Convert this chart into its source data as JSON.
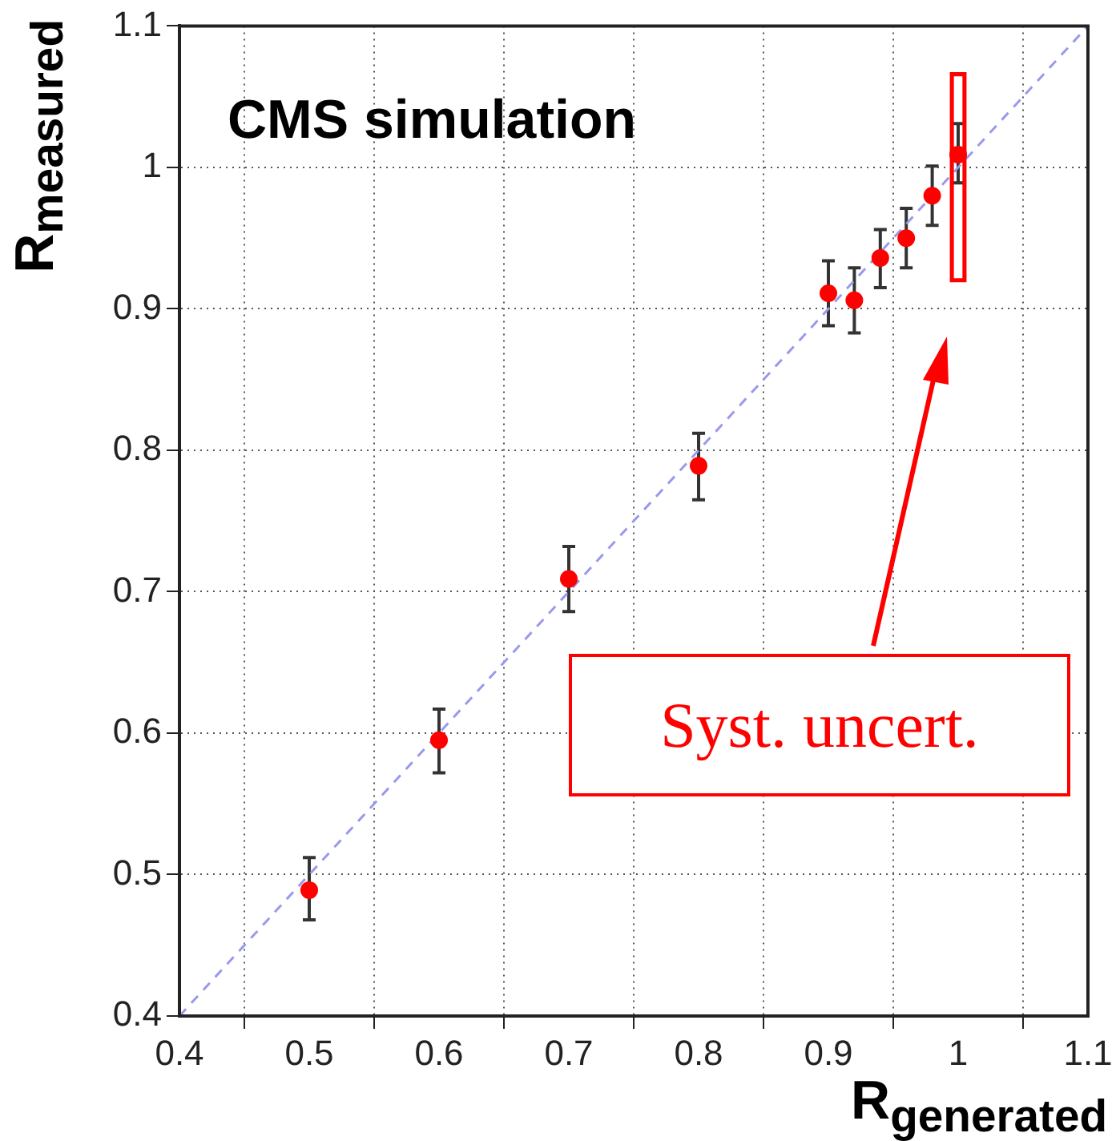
{
  "chart_data": {
    "type": "scatter",
    "title": "CMS simulation",
    "xlabel": "R$_{generated}$",
    "ylabel": "R$_{measured}$",
    "xlim": [
      0.4,
      1.1
    ],
    "xticks": [
      0.4,
      0.5,
      0.6,
      0.7,
      0.8,
      0.9,
      1,
      1.1
    ],
    "ylim": [
      0.4,
      1.1
    ],
    "yticks": [
      0.4,
      0.5,
      0.6,
      0.7,
      0.8,
      0.9,
      1,
      1.1
    ],
    "grid": true,
    "legend": false,
    "marker": "circle",
    "annotations": [
      "Syst. uncert."
    ],
    "series": [
      {
        "color": "#ff0000",
        "x": [
          0.5,
          0.6,
          0.7,
          0.8,
          0.9,
          0.92,
          0.94,
          0.96,
          0.98,
          1.0
        ],
        "values": [
          0.489,
          0.595,
          0.709,
          0.789,
          0.911,
          0.906,
          0.936,
          0.95,
          0.98,
          1.009
        ],
        "errors": [
          [
            0.468,
            0.512
          ],
          [
            0.572,
            0.617
          ],
          [
            0.686,
            0.732
          ],
          [
            0.765,
            0.812
          ],
          [
            0.888,
            0.934
          ],
          [
            0.883,
            0.929
          ],
          [
            0.915,
            0.956
          ],
          [
            0.929,
            0.971
          ],
          [
            0.959,
            1.001
          ],
          [
            0.989,
            1.031
          ]
        ]
      },
      {
        "type": "bar",
        "color": "#ff0000",
        "x": [
          1.0
        ],
        "base": [
          0.919
        ],
        "values": [
          0.148
        ]
      },
      {
        "type": "line",
        "color": "#9999ee",
        "line_style": "dashed",
        "marker": "none",
        "x": [
          0.4,
          1.1
        ],
        "values": [
          0.4,
          1.1
        ]
      }
    ]
  }
}
